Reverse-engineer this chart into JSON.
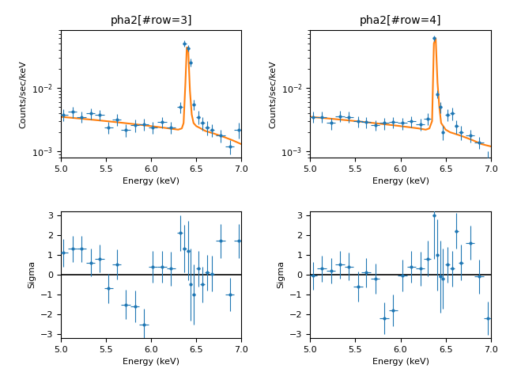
{
  "title_left": "pha2[#row=3]",
  "title_right": "pha2[#row=4]",
  "xlabel": "Energy (keV)",
  "ylabel_spec": "Counts/sec/keV",
  "ylabel_res": "Sigma",
  "xlim": [
    5.0,
    7.0
  ],
  "ylim_spec": [
    0.0008,
    0.08
  ],
  "ylim_res": [
    -3.2,
    3.2
  ],
  "data_color": "#1f77b4",
  "fit_color": "#ff7f0e",
  "spec1_x": [
    5.03,
    5.13,
    5.23,
    5.33,
    5.43,
    5.53,
    5.62,
    5.72,
    5.82,
    5.92,
    6.02,
    6.12,
    6.22,
    6.32,
    6.37,
    6.41,
    6.44,
    6.47,
    6.52,
    6.57,
    6.62,
    6.67,
    6.77,
    6.87,
    6.97
  ],
  "spec1_y": [
    0.0038,
    0.0042,
    0.0035,
    0.004,
    0.0038,
    0.0024,
    0.0032,
    0.0022,
    0.0026,
    0.0027,
    0.0024,
    0.0029,
    0.0024,
    0.005,
    0.05,
    0.042,
    0.025,
    0.0055,
    0.0035,
    0.0028,
    0.0024,
    0.0022,
    0.0018,
    0.0012,
    0.0022
  ],
  "spec1_xerr": [
    0.05,
    0.05,
    0.05,
    0.05,
    0.05,
    0.05,
    0.05,
    0.05,
    0.05,
    0.05,
    0.05,
    0.05,
    0.05,
    0.03,
    0.02,
    0.015,
    0.015,
    0.015,
    0.025,
    0.025,
    0.025,
    0.025,
    0.05,
    0.05,
    0.05
  ],
  "spec1_yerr": [
    0.0008,
    0.0008,
    0.0007,
    0.0008,
    0.0007,
    0.0005,
    0.0007,
    0.0005,
    0.0006,
    0.0006,
    0.0005,
    0.0006,
    0.0005,
    0.001,
    0.0055,
    0.005,
    0.0035,
    0.001,
    0.0008,
    0.0007,
    0.0006,
    0.0005,
    0.0004,
    0.0003,
    0.0006
  ],
  "fit1_x": [
    5.0,
    5.1,
    5.2,
    5.3,
    5.4,
    5.5,
    5.6,
    5.7,
    5.8,
    5.9,
    6.0,
    6.1,
    6.2,
    6.3,
    6.34,
    6.36,
    6.38,
    6.395,
    6.41,
    6.43,
    6.45,
    6.47,
    6.5,
    6.55,
    6.6,
    6.65,
    6.7,
    6.8,
    6.9,
    7.0
  ],
  "fit1_y": [
    0.0035,
    0.0034,
    0.0033,
    0.0032,
    0.0031,
    0.003,
    0.0029,
    0.0028,
    0.0027,
    0.0026,
    0.0025,
    0.0024,
    0.0023,
    0.0022,
    0.0023,
    0.0028,
    0.012,
    0.043,
    0.043,
    0.009,
    0.0038,
    0.0028,
    0.0025,
    0.0023,
    0.0021,
    0.002,
    0.0019,
    0.0017,
    0.0015,
    0.0013
  ],
  "res1_x": [
    5.03,
    5.13,
    5.23,
    5.33,
    5.43,
    5.53,
    5.62,
    5.72,
    5.82,
    5.92,
    6.02,
    6.12,
    6.22,
    6.32,
    6.37,
    6.41,
    6.44,
    6.47,
    6.52,
    6.57,
    6.62,
    6.67,
    6.77,
    6.87,
    6.97
  ],
  "res1_y": [
    1.1,
    1.3,
    1.3,
    0.6,
    0.8,
    -0.7,
    0.5,
    -1.5,
    -1.6,
    -2.5,
    0.4,
    0.4,
    0.3,
    2.1,
    1.3,
    1.2,
    -0.5,
    -1.0,
    0.3,
    -0.5,
    0.1,
    0.05,
    1.7,
    -1.0,
    1.7
  ],
  "res1_yerr": [
    0.7,
    0.65,
    0.65,
    0.7,
    0.7,
    0.75,
    0.75,
    0.75,
    0.8,
    0.8,
    0.8,
    0.8,
    0.85,
    0.9,
    1.2,
    1.5,
    1.8,
    1.5,
    0.9,
    0.9,
    0.9,
    0.9,
    0.85,
    0.85,
    0.85
  ],
  "res1_xerr": [
    0.05,
    0.05,
    0.05,
    0.05,
    0.05,
    0.05,
    0.05,
    0.05,
    0.05,
    0.05,
    0.05,
    0.05,
    0.05,
    0.03,
    0.02,
    0.015,
    0.015,
    0.015,
    0.025,
    0.025,
    0.025,
    0.025,
    0.05,
    0.05,
    0.05
  ],
  "spec2_x": [
    5.03,
    5.13,
    5.23,
    5.33,
    5.43,
    5.53,
    5.62,
    5.72,
    5.82,
    5.92,
    6.02,
    6.12,
    6.22,
    6.3,
    6.37,
    6.41,
    6.44,
    6.47,
    6.52,
    6.57,
    6.62,
    6.67,
    6.77,
    6.87,
    6.97
  ],
  "spec2_y": [
    0.0035,
    0.0035,
    0.0028,
    0.0036,
    0.0035,
    0.003,
    0.0029,
    0.0026,
    0.0028,
    0.0029,
    0.0028,
    0.003,
    0.0027,
    0.0033,
    0.06,
    0.008,
    0.005,
    0.002,
    0.0038,
    0.004,
    0.0025,
    0.002,
    0.0018,
    0.0014,
    0.00075
  ],
  "spec2_xerr": [
    0.05,
    0.05,
    0.05,
    0.05,
    0.05,
    0.05,
    0.05,
    0.05,
    0.05,
    0.05,
    0.05,
    0.05,
    0.05,
    0.04,
    0.02,
    0.015,
    0.015,
    0.015,
    0.025,
    0.025,
    0.025,
    0.025,
    0.05,
    0.05,
    0.05
  ],
  "spec2_yerr": [
    0.0007,
    0.0007,
    0.0006,
    0.0007,
    0.0007,
    0.0006,
    0.0006,
    0.0005,
    0.0006,
    0.0006,
    0.0006,
    0.0006,
    0.0006,
    0.0007,
    0.0055,
    0.0012,
    0.001,
    0.0005,
    0.0008,
    0.0009,
    0.0006,
    0.0005,
    0.0004,
    0.0003,
    0.00025
  ],
  "fit2_x": [
    5.0,
    5.1,
    5.2,
    5.3,
    5.4,
    5.5,
    5.6,
    5.7,
    5.8,
    5.9,
    6.0,
    6.1,
    6.2,
    6.28,
    6.32,
    6.35,
    6.37,
    6.39,
    6.41,
    6.43,
    6.45,
    6.5,
    6.55,
    6.6,
    6.65,
    6.7,
    6.8,
    6.9,
    7.0
  ],
  "fit2_y": [
    0.0035,
    0.0034,
    0.0033,
    0.0032,
    0.0031,
    0.003,
    0.0029,
    0.0028,
    0.0027,
    0.0026,
    0.0025,
    0.0024,
    0.0023,
    0.0022,
    0.0023,
    0.003,
    0.05,
    0.06,
    0.012,
    0.005,
    0.0028,
    0.0022,
    0.002,
    0.0019,
    0.0018,
    0.0017,
    0.0015,
    0.0013,
    0.0012
  ],
  "res2_x": [
    5.03,
    5.13,
    5.23,
    5.33,
    5.43,
    5.53,
    5.62,
    5.72,
    5.82,
    5.92,
    6.02,
    6.12,
    6.22,
    6.3,
    6.37,
    6.41,
    6.44,
    6.47,
    6.52,
    6.57,
    6.62,
    6.67,
    6.77,
    6.87,
    6.97
  ],
  "res2_y": [
    -0.05,
    0.3,
    0.2,
    0.5,
    0.4,
    -0.6,
    0.1,
    -0.2,
    -2.2,
    -1.8,
    -0.05,
    0.4,
    0.3,
    0.8,
    3.0,
    1.0,
    -0.1,
    -0.2,
    0.5,
    0.3,
    2.2,
    0.6,
    1.6,
    -0.1,
    -2.2
  ],
  "res2_yerr": [
    0.7,
    0.65,
    0.65,
    0.7,
    0.7,
    0.75,
    0.75,
    0.75,
    0.8,
    0.8,
    0.8,
    0.8,
    0.85,
    0.9,
    2.2,
    1.8,
    1.8,
    1.5,
    0.9,
    0.9,
    0.9,
    0.9,
    0.85,
    0.85,
    0.85
  ],
  "res2_xerr": [
    0.05,
    0.05,
    0.05,
    0.05,
    0.05,
    0.05,
    0.05,
    0.05,
    0.05,
    0.05,
    0.05,
    0.05,
    0.05,
    0.04,
    0.02,
    0.015,
    0.015,
    0.015,
    0.025,
    0.025,
    0.025,
    0.025,
    0.05,
    0.05,
    0.05
  ]
}
